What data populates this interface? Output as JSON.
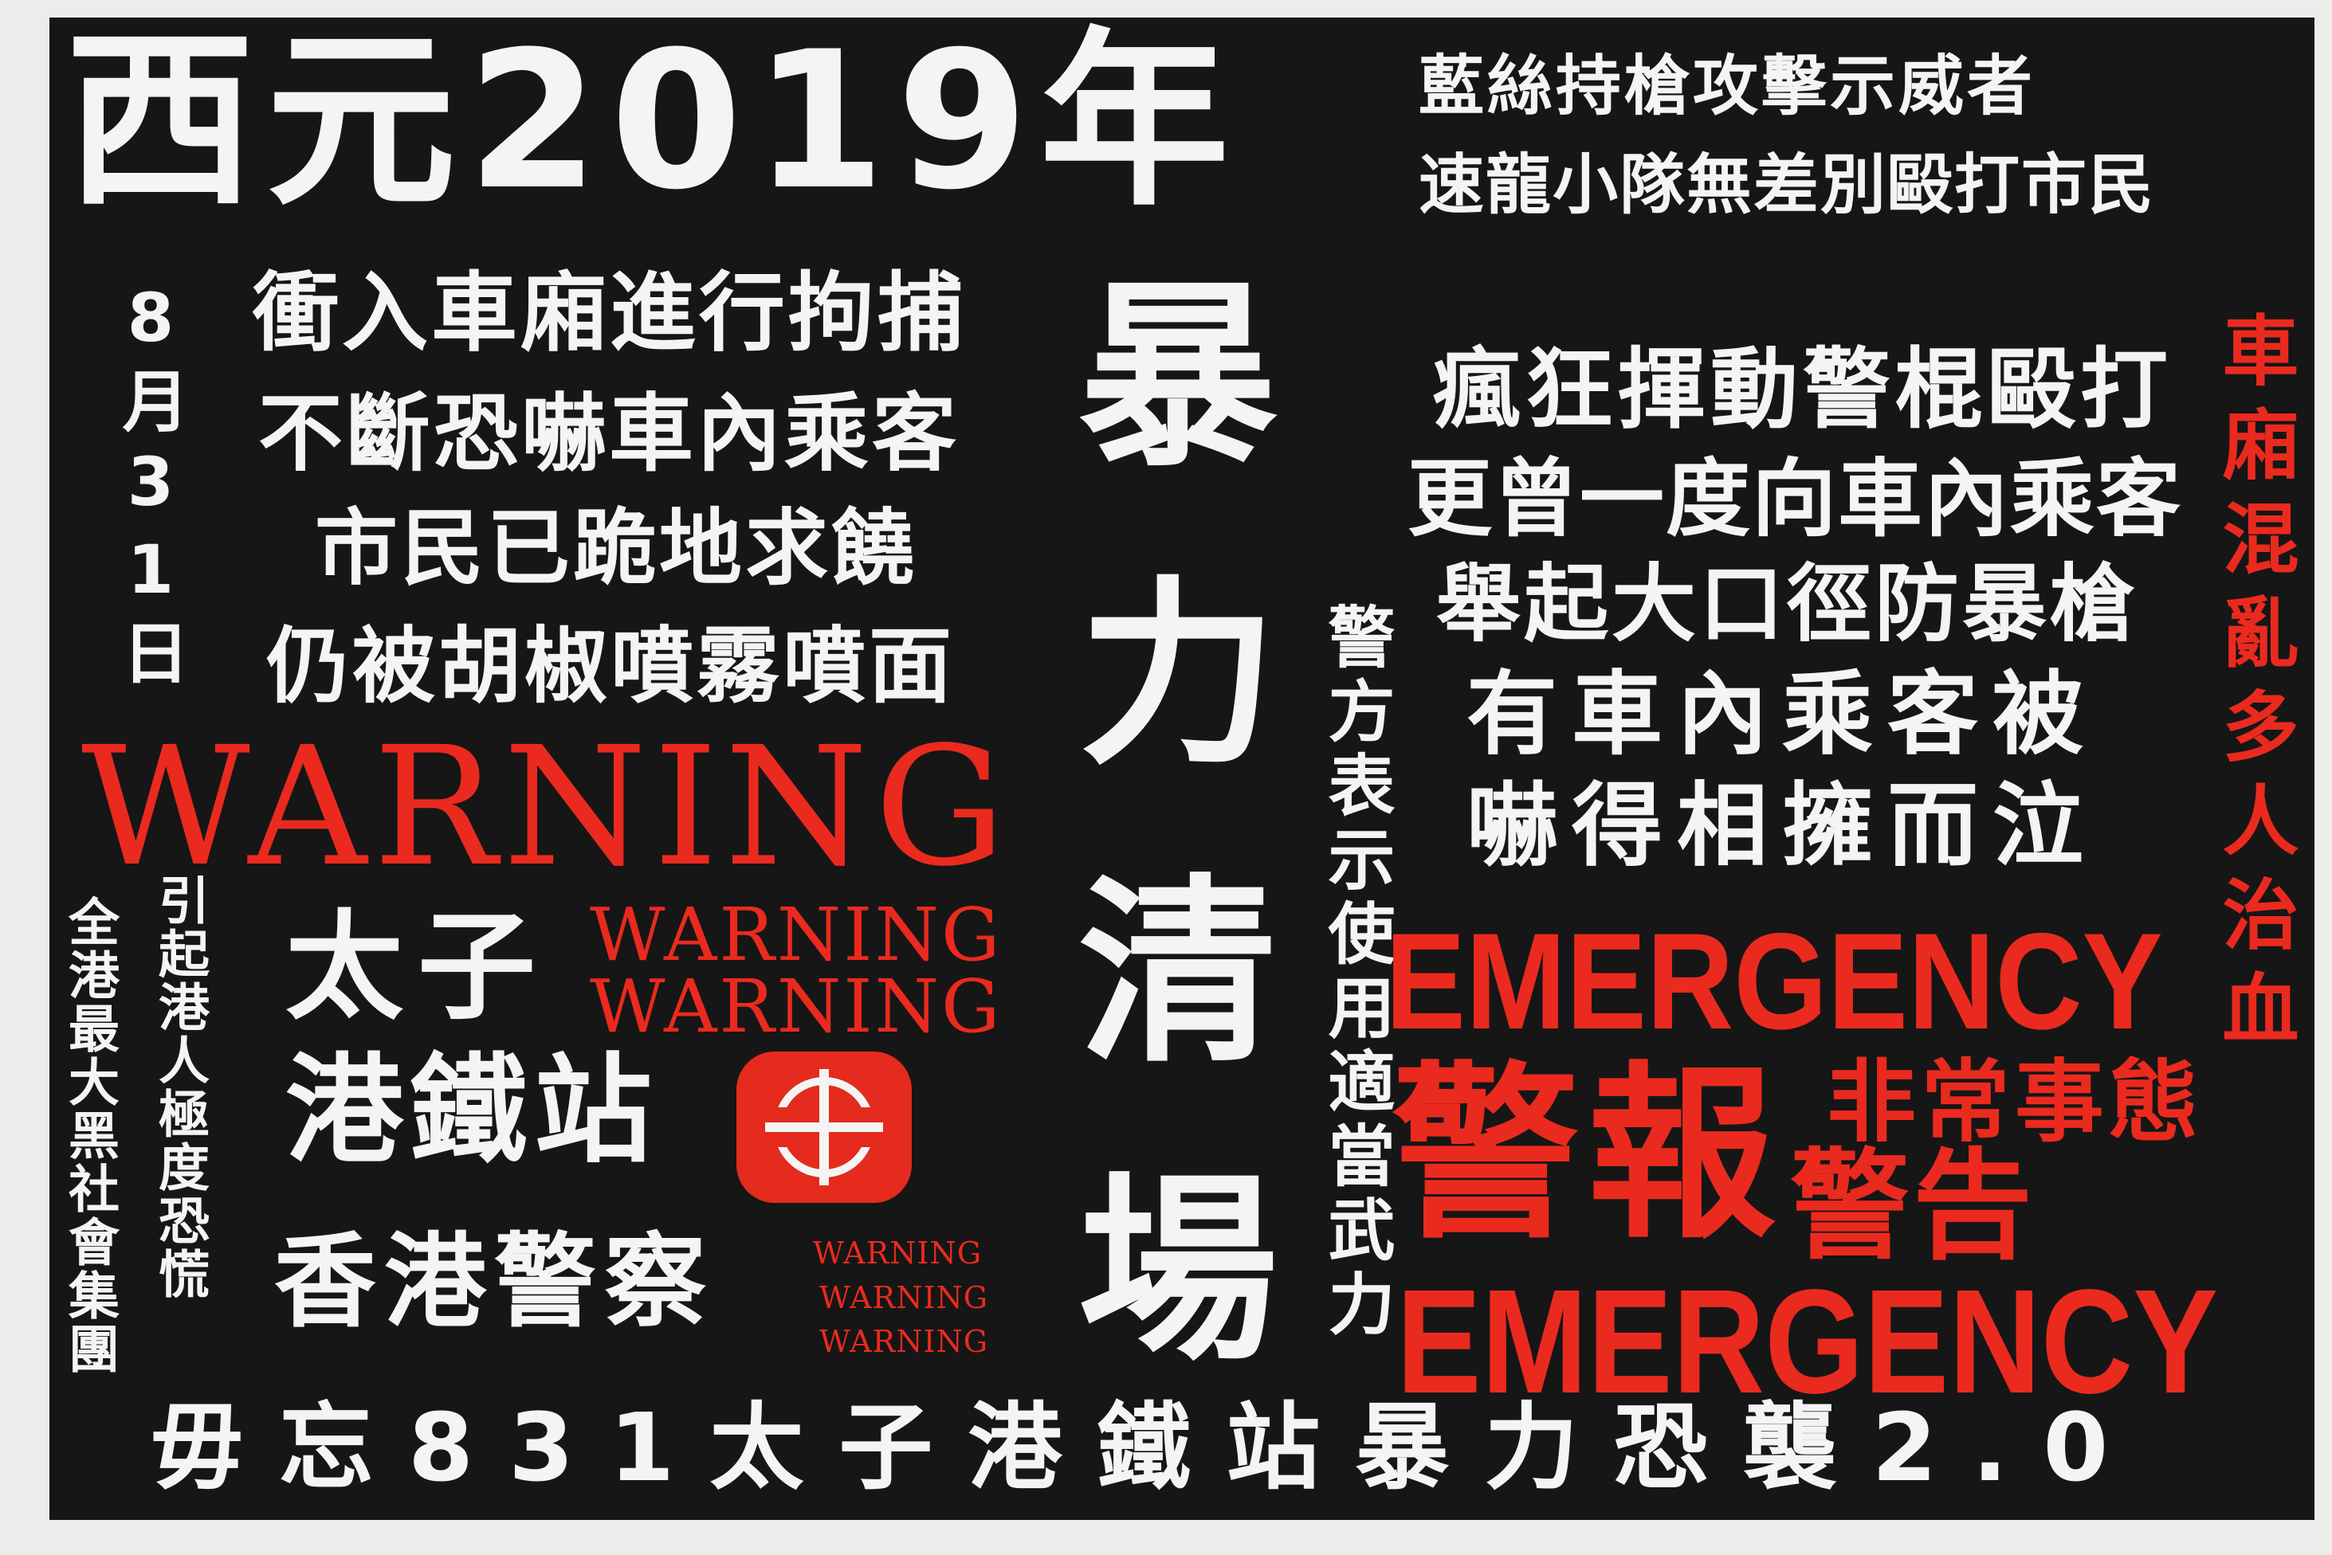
{
  "title": {
    "year": "西元2019年",
    "line1": "藍絲持槍攻擊示威者",
    "line2": "速龍小隊無差別毆打市民"
  },
  "date_vertical": "8月31日",
  "left_lines": [
    "衝入車廂進行拘捕",
    "不斷恐嚇車內乘客",
    "市民已跪地求饒",
    "仍被胡椒噴霧噴面"
  ],
  "center_vertical": "暴力清場",
  "police_vertical": "警方表示使用適當武力",
  "right_lines": [
    "瘋狂揮動警棍毆打",
    "更曾一度向車內乘客",
    "舉起大口徑防暴槍",
    "有車內乘客被",
    "嚇得相擁而泣"
  ],
  "right_red_vertical": "車廂混亂多人治血",
  "warning_big": "WARNING",
  "warning_small": [
    "WARNING",
    "WARNING"
  ],
  "warning_tiny": [
    "WARNING",
    "WARNING",
    "WARNING"
  ],
  "left_vertical_1": "全港最大黑社會集團",
  "left_vertical_2": "引起港人極度恐慌",
  "station": {
    "line1": "太子",
    "line2": "港鐵站"
  },
  "police_name": "香港警察",
  "emergency_top": "EMERGENCY",
  "emergency_bottom": "EMERGENCY",
  "alarm_big": "警報",
  "alarm_small_top": "非常事態",
  "alarm_small_bottom": "警告",
  "footer": "毋忘831太子港鐵站暴力恐襲2.0",
  "colors": {
    "background": "#161616",
    "text": "#f4f4f4",
    "accent_red": "#ea2a1e"
  },
  "logo_icon": "mtr-logo-icon"
}
